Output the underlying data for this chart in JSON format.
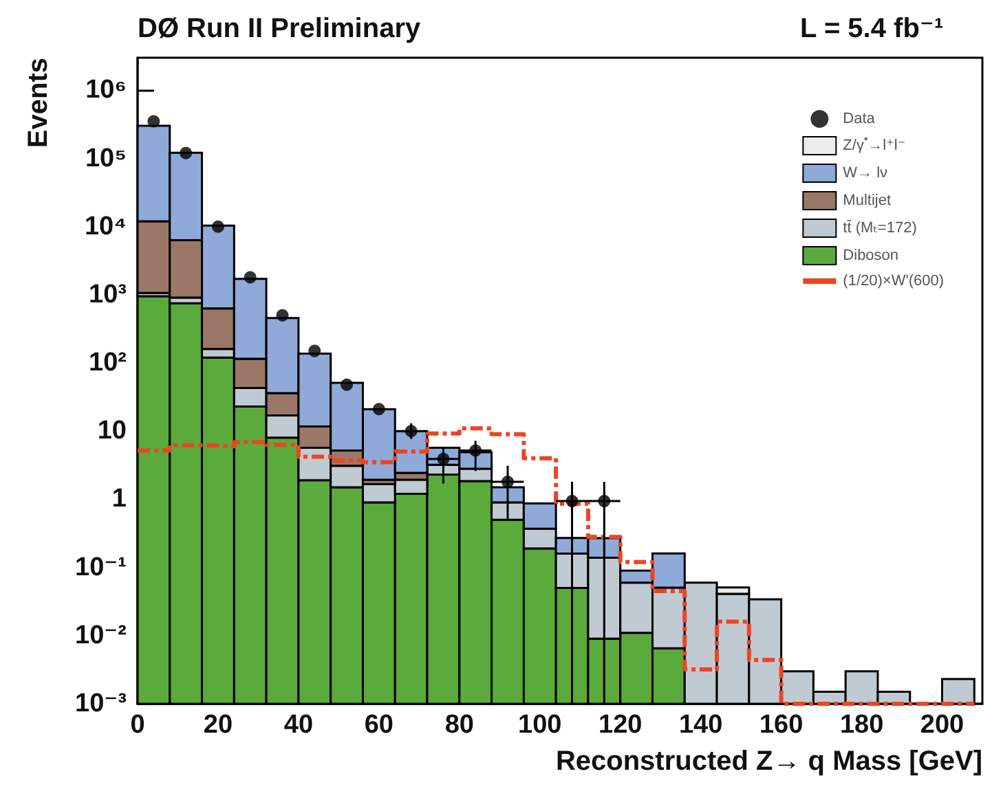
{
  "chart_data": {
    "type": "bar",
    "title": "DØ Run II Preliminary",
    "subtitle": "L = 5.4 fb⁻¹",
    "xlabel": "Reconstructed Z→ q Mass [GeV]",
    "ylabel": "Events",
    "x": [
      4,
      12,
      20,
      28,
      36,
      44,
      52,
      60,
      68,
      76,
      84,
      92,
      100,
      108,
      116,
      124,
      132,
      140,
      148,
      156,
      164,
      172,
      180,
      188,
      196,
      204
    ],
    "stacked": true,
    "log": "y",
    "grid": false,
    "legend": "top right",
    "xlim": [
      0,
      210
    ],
    "xticks": [
      0,
      20,
      40,
      60,
      80,
      100,
      120,
      140,
      160,
      180,
      200
    ],
    "ylim": [
      0.001,
      3000000
    ],
    "yticks": [
      {
        "value": 0.001,
        "label": "10⁻³"
      },
      {
        "value": 0.01,
        "label": "10⁻²"
      },
      {
        "value": 0.1,
        "label": "10⁻¹"
      },
      1,
      10,
      {
        "value": 100,
        "label": "10²"
      },
      {
        "value": 1000,
        "label": "10³"
      },
      {
        "value": 10000,
        "label": "10⁴"
      },
      {
        "value": 100000,
        "label": "10⁵"
      },
      {
        "value": 1000000,
        "label": "10⁶"
      }
    ],
    "series": [
      {
        "name": "Diboson",
        "color": "#5aaa3c",
        "values": [
          950,
          750,
          120,
          23,
          8,
          1.9,
          1.5,
          0.9,
          1.2,
          2.3,
          1.85,
          0.5,
          0.19,
          0.05,
          0.009,
          0.011,
          0.0065,
          null,
          null,
          null,
          null,
          null,
          null,
          null,
          null,
          null
        ]
      },
      {
        "name": "tt̄ (Mₜ=172)",
        "color": "#c0cad2",
        "values": [
          110,
          160,
          40,
          20,
          9,
          3.8,
          1.6,
          0.76,
          0.74,
          0.9,
          0.95,
          0.4,
          0.18,
          0.11,
          0.13,
          0.049,
          0.044,
          0.06,
          0.041,
          0.034,
          0.003,
          0.0015,
          0.003,
          0.0015,
          null,
          0.0023
        ]
      },
      {
        "name": "Multijet",
        "color": "#9a7766",
        "values": [
          10900,
          5400,
          470,
          72,
          19,
          6,
          2.1,
          0.28,
          0.5,
          null,
          null,
          null,
          null,
          null,
          null,
          null,
          null,
          null,
          null,
          null,
          null,
          null,
          null,
          null,
          null,
          null
        ]
      },
      {
        "name": "W→ lν",
        "color": "#8fa9d8",
        "values": [
          290000,
          115000,
          9700,
          1600,
          420,
          125,
          46,
          19,
          7.5,
          2.5,
          2.1,
          0.6,
          0.5,
          0.11,
          0.13,
          0.03,
          0.11,
          null,
          null,
          null,
          null,
          null,
          null,
          null,
          null,
          null
        ]
      },
      {
        "name": "Z/γ$^{*}$→l⁺l⁻",
        "color": "#ececec",
        "values": [
          null,
          null,
          null,
          null,
          null,
          null,
          null,
          null,
          null,
          null,
          null,
          null,
          null,
          null,
          null,
          null,
          null,
          null,
          0.01,
          null,
          null,
          null,
          null,
          null,
          null,
          null
        ]
      },
      {
        "name": "Data",
        "type": "scatter",
        "color": "#000000",
        "marker": "circle",
        "x": [
          4,
          12,
          20,
          28,
          36,
          44,
          52,
          60,
          68,
          76,
          84,
          92,
          108,
          116
        ],
        "values": [
          350000,
          120000,
          10000,
          1800,
          500,
          150,
          48,
          21,
          10,
          3.9,
          5.2,
          1.8,
          0.94,
          0.94
        ],
        "errors": [
          null,
          null,
          null,
          null,
          null,
          null,
          null,
          null,
          [
            7.7,
            13
          ],
          [
            1.7,
            5.7
          ],
          [
            2.6,
            7.2
          ],
          [
            0.52,
            3.1
          ],
          [
            0.001,
            1.8
          ],
          [
            0.001,
            1.8
          ]
        ],
        "xerrors": [
          null,
          null,
          null,
          null,
          null,
          null,
          null,
          null,
          4,
          4,
          4,
          4,
          4,
          4
        ]
      },
      {
        "name": "(1/20)×W'(600)",
        "type": "step",
        "color": "#ee4422",
        "line_style": "dashed",
        "x": [
          0,
          8,
          16,
          24,
          32,
          40,
          48,
          56,
          64,
          72,
          80,
          88,
          96,
          104,
          112,
          120,
          128,
          136,
          144,
          152,
          160,
          168,
          176,
          184,
          192,
          200,
          208
        ],
        "values": [
          5.2,
          6.2,
          6,
          6.9,
          6.3,
          4.2,
          3.7,
          3.5,
          5,
          9.2,
          11,
          9,
          4,
          0.86,
          0.28,
          0.12,
          0.045,
          0.0032,
          0.016,
          0.0044,
          0.001,
          0.001,
          0.001,
          0.001,
          0.001,
          0.001,
          0.001
        ]
      }
    ]
  }
}
